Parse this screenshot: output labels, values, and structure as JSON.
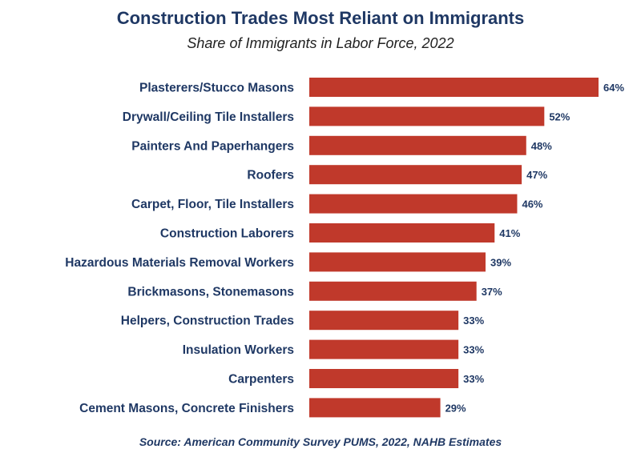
{
  "chart_data": {
    "type": "bar",
    "orientation": "horizontal",
    "title": "Construction Trades Most Reliant on Immigrants",
    "subtitle": "Share of Immigrants in Labor Force, 2022",
    "source": "Source: American Community Survey PUMS, 2022, NAHB Estimates",
    "categories": [
      "Plasterers/Stucco Masons",
      "Drywall/Ceiling Tile Installers",
      "Painters And Paperhangers",
      "Roofers",
      "Carpet, Floor, Tile Installers",
      "Construction Laborers",
      "Hazardous Materials Removal Workers",
      "Brickmasons, Stonemasons",
      "Helpers, Construction Trades",
      "Insulation Workers",
      "Carpenters",
      "Cement Masons, Concrete Finishers"
    ],
    "values": [
      64,
      52,
      48,
      47,
      46,
      41,
      39,
      37,
      33,
      33,
      33,
      29
    ],
    "value_labels": [
      "64%",
      "52%",
      "48%",
      "47%",
      "46%",
      "41%",
      "39%",
      "37%",
      "33%",
      "33%",
      "33%",
      "29%"
    ],
    "unit": "%",
    "xlim": [
      0,
      64
    ],
    "grid": false,
    "bar_color": "#c0392b"
  }
}
